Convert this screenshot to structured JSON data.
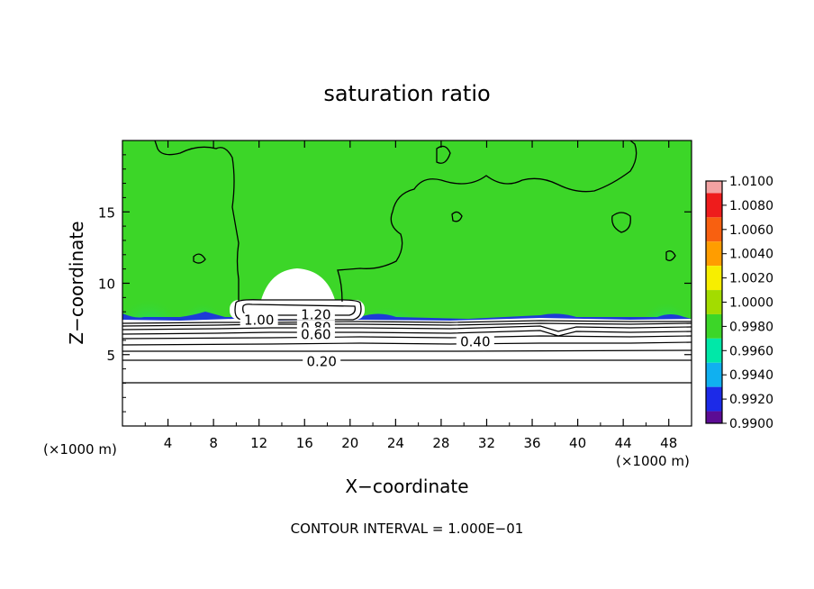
{
  "chart_data": {
    "type": "heatmap",
    "title": "saturation ratio",
    "xlabel": "X−coordinate",
    "ylabel": "Z−coordinate",
    "x_unit_left": "(×1000 m)",
    "x_unit_right": "(×1000 m)",
    "xlim": [
      0,
      50
    ],
    "ylim": [
      0,
      20
    ],
    "x_ticks": [
      4,
      8,
      12,
      16,
      20,
      24,
      28,
      32,
      36,
      40,
      44,
      48
    ],
    "y_ticks": [
      5,
      10,
      15
    ],
    "footer": "CONTOUR INTERVAL = 1.000E−01",
    "colorbar": {
      "levels": [
        "1.0100",
        "1.0080",
        "1.0060",
        "1.0040",
        "1.0020",
        "1.0000",
        "0.9980",
        "0.9960",
        "0.9940",
        "0.9920",
        "0.9900"
      ],
      "colors": [
        "#f2a2a2",
        "#ee1c1c",
        "#f86010",
        "#ff9d00",
        "#f7ee00",
        "#a3dc00",
        "#3cd628",
        "#00e8a8",
        "#10b0f0",
        "#1c2ae8",
        "#5c0c94"
      ]
    },
    "contour_labels": [
      {
        "text": "1.00",
        "x": 12.0,
        "z": 7.4
      },
      {
        "text": "1.20",
        "x": 17.0,
        "z": 7.8
      },
      {
        "text": "0.80",
        "x": 17.0,
        "z": 6.9
      },
      {
        "text": "0.60",
        "x": 17.0,
        "z": 6.4
      },
      {
        "text": "0.40",
        "x": 31.0,
        "z": 5.9
      },
      {
        "text": "0.20",
        "x": 17.5,
        "z": 4.5
      }
    ],
    "colors": {
      "plot_background": "#3cd628",
      "dry_region": "#ffffff",
      "contour": "#000000"
    }
  }
}
